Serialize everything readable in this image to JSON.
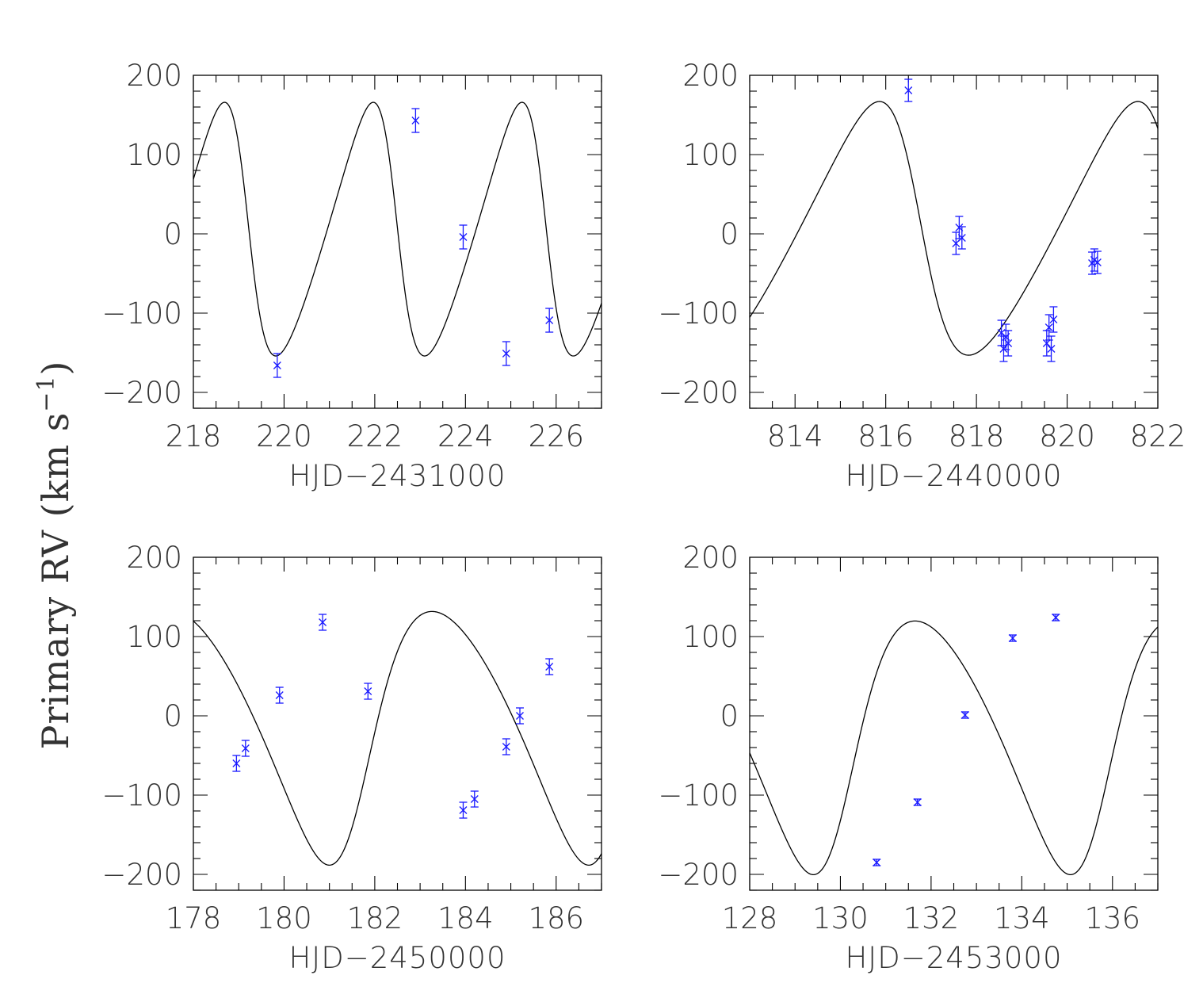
{
  "ylabel": {
    "main": "Primary RV (km s",
    "sup": "−1",
    "close": ")"
  },
  "chart_data": [
    {
      "type": "scatter",
      "xlabel": "HJD−2431000",
      "xlim": [
        218,
        227
      ],
      "ylim": [
        -220,
        200
      ],
      "xticks": [
        218,
        220,
        222,
        224,
        226
      ],
      "xtick_labels": [
        "218",
        "220",
        "222",
        "224",
        "226"
      ],
      "yticks": [
        -200,
        -100,
        0,
        100,
        200
      ],
      "ytick_labels": [
        "−200",
        "−100",
        "0",
        "100",
        "200"
      ],
      "grid": false,
      "model": {
        "period": 3.28,
        "K": 160,
        "e": 0.25,
        "omega_deg": 80,
        "gamma": -1,
        "t_peri": 222.45
      },
      "points": [
        {
          "x": 219.85,
          "y": -166,
          "err": 15
        },
        {
          "x": 222.9,
          "y": 143,
          "err": 15
        },
        {
          "x": 223.95,
          "y": -4,
          "err": 15
        },
        {
          "x": 224.9,
          "y": -151,
          "err": 15
        },
        {
          "x": 225.85,
          "y": -109,
          "err": 15
        }
      ]
    },
    {
      "type": "scatter",
      "xlabel": "HJD−2440000",
      "xlim": [
        813,
        822
      ],
      "ylim": [
        -220,
        200
      ],
      "xticks": [
        814,
        816,
        818,
        820,
        822
      ],
      "xtick_labels": [
        "814",
        "816",
        "818",
        "820",
        "822"
      ],
      "yticks": [
        -200,
        -100,
        0,
        100,
        200
      ],
      "ytick_labels": [
        "−200",
        "−100",
        "0",
        "100",
        "200"
      ],
      "grid": false,
      "model": {
        "period": 5.7,
        "K": 160,
        "e": 0.25,
        "omega_deg": 80,
        "gamma": 0,
        "t_peri": 816.7
      },
      "points": [
        {
          "x": 816.5,
          "y": 181,
          "err": 14
        },
        {
          "x": 817.55,
          "y": -12,
          "err": 14
        },
        {
          "x": 817.62,
          "y": 8,
          "err": 14
        },
        {
          "x": 817.68,
          "y": -5,
          "err": 14
        },
        {
          "x": 818.55,
          "y": -125,
          "err": 16
        },
        {
          "x": 818.6,
          "y": -145,
          "err": 16
        },
        {
          "x": 818.65,
          "y": -130,
          "err": 16
        },
        {
          "x": 818.7,
          "y": -138,
          "err": 16
        },
        {
          "x": 819.55,
          "y": -138,
          "err": 16
        },
        {
          "x": 819.6,
          "y": -118,
          "err": 16
        },
        {
          "x": 819.65,
          "y": -145,
          "err": 16
        },
        {
          "x": 819.7,
          "y": -108,
          "err": 16
        },
        {
          "x": 820.55,
          "y": -37,
          "err": 14
        },
        {
          "x": 820.6,
          "y": -33,
          "err": 14
        },
        {
          "x": 820.67,
          "y": -36,
          "err": 14
        }
      ]
    },
    {
      "type": "scatter",
      "xlabel": "HJD−2450000",
      "xlim": [
        178,
        187
      ],
      "ylim": [
        -220,
        200
      ],
      "xticks": [
        178,
        180,
        182,
        184,
        186
      ],
      "xtick_labels": [
        "178",
        "180",
        "182",
        "184",
        "186"
      ],
      "yticks": [
        -200,
        -100,
        0,
        100,
        200
      ],
      "ytick_labels": [
        "−200",
        "−100",
        "0",
        "100",
        "200"
      ],
      "grid": false,
      "model": {
        "period": 5.72,
        "K": 160,
        "e": 0.2,
        "omega_deg": 235,
        "gamma": -10,
        "t_peri": 181.6
      },
      "points": [
        {
          "x": 178.95,
          "y": -60,
          "err": 10
        },
        {
          "x": 179.15,
          "y": -41,
          "err": 10
        },
        {
          "x": 179.9,
          "y": 26,
          "err": 10
        },
        {
          "x": 180.85,
          "y": 118,
          "err": 10
        },
        {
          "x": 181.85,
          "y": 31,
          "err": 10
        },
        {
          "x": 183.95,
          "y": -119,
          "err": 10
        },
        {
          "x": 184.2,
          "y": -105,
          "err": 10
        },
        {
          "x": 184.9,
          "y": -39,
          "err": 10
        },
        {
          "x": 185.2,
          "y": 0,
          "err": 10
        },
        {
          "x": 185.85,
          "y": 62,
          "err": 10
        }
      ]
    },
    {
      "type": "scatter",
      "xlabel": "HJD−2453000",
      "xlim": [
        128,
        137
      ],
      "ylim": [
        -220,
        200
      ],
      "xticks": [
        128,
        130,
        132,
        134,
        136
      ],
      "xtick_labels": [
        "128",
        "130",
        "132",
        "134",
        "136"
      ],
      "yticks": [
        -200,
        -100,
        0,
        100,
        200
      ],
      "ytick_labels": [
        "−200",
        "−100",
        "0",
        "100",
        "200"
      ],
      "grid": false,
      "model": {
        "period": 5.67,
        "K": 160,
        "e": 0.2,
        "omega_deg": 235,
        "gamma": -22,
        "t_peri": 130.0
      },
      "points": [
        {
          "x": 130.8,
          "y": -185,
          "err": 4
        },
        {
          "x": 131.7,
          "y": -109,
          "err": 4
        },
        {
          "x": 132.75,
          "y": 1,
          "err": 4
        },
        {
          "x": 133.8,
          "y": 98,
          "err": 4
        },
        {
          "x": 134.75,
          "y": 124,
          "err": 4
        }
      ]
    }
  ]
}
